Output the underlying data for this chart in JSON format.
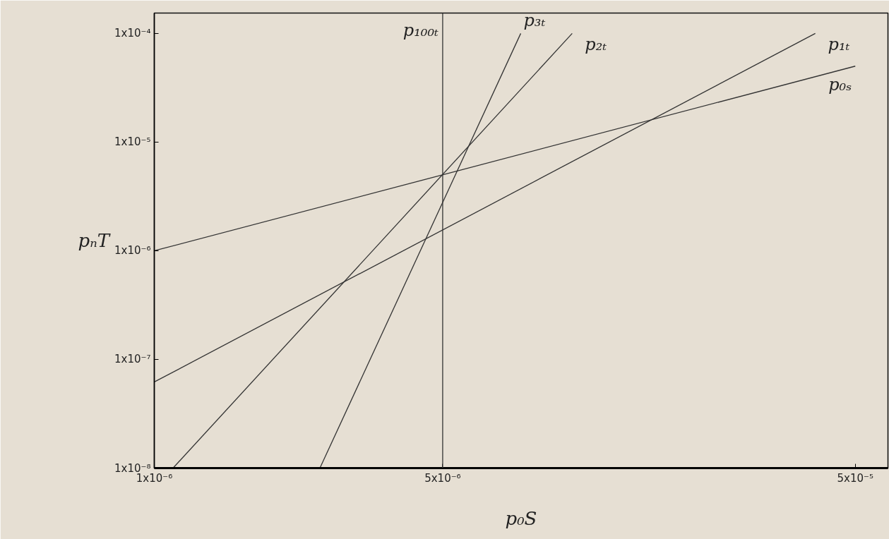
{
  "chart_data": {
    "type": "line",
    "xlabel": "p₀S",
    "ylabel": "pₙT",
    "log": "xy",
    "marker": "none",
    "line_style": "solid",
    "ref_lines": [
      {
        "axis": "x",
        "value": 5e-06,
        "label": "p₁₀₀ₜ",
        "color": "#333333"
      }
    ],
    "xlim": [
      1e-06,
      6e-05
    ],
    "ylim": [
      1e-08,
      0.000154
    ],
    "xticks": [
      {
        "value": 1e-06,
        "label": "1x10⁻⁶"
      },
      {
        "value": 5e-06,
        "label": "5x10⁻⁶"
      },
      {
        "value": 5e-05,
        "label": "5x10⁻⁵"
      }
    ],
    "yticks": [
      {
        "value": 1e-08,
        "label": "1x10⁻⁸"
      },
      {
        "value": 1e-07,
        "label": "1x10⁻⁷"
      },
      {
        "value": 1e-06,
        "label": "1x10⁻⁶"
      },
      {
        "value": 1e-05,
        "label": "1x10⁻⁵"
      },
      {
        "value": 0.0001,
        "label": "1x10⁻⁴"
      }
    ],
    "series": [
      {
        "name": "p₃ₜ",
        "color": "#333333",
        "x": [
          2.52e-06,
          7.73e-06
        ],
        "values": [
          1e-08,
          0.0001
        ]
      },
      {
        "name": "p₂ₜ",
        "color": "#333333",
        "x": [
          1.11e-06,
          1.03e-05
        ],
        "values": [
          1e-08,
          0.0001
        ]
      },
      {
        "name": "p₁ₜ",
        "color": "#333333",
        "x": [
          1e-06,
          4e-05
        ],
        "values": [
          6.2e-08,
          0.0001
        ]
      },
      {
        "name": "p₀ₛ",
        "color": "#333333",
        "x": [
          1e-06,
          5e-05
        ],
        "values": [
          1e-06,
          5e-05
        ]
      }
    ]
  }
}
